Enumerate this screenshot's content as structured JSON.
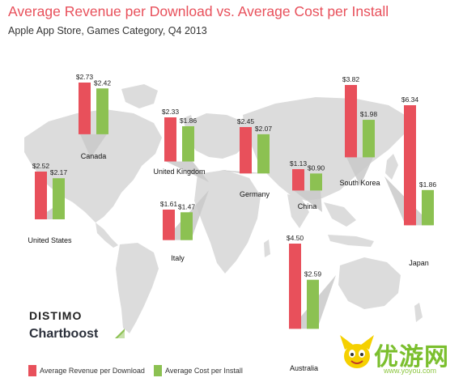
{
  "header": {
    "title": "Average Revenue per Download vs. Average Cost per Install",
    "subtitle": "Apple App Store, Games Category, Q4 2013"
  },
  "colors": {
    "revenue": "#e8505b",
    "cost": "#8cc152",
    "map": "#dcdcdc",
    "leader": "#c9c9c9"
  },
  "chart_data": {
    "type": "bar",
    "title": "Average Revenue per Download vs. Average Cost per Install",
    "subtitle": "Apple App Store, Games Category, Q4 2013",
    "value_format": "$",
    "categories": [
      "Canada",
      "United States",
      "United Kingdom",
      "Italy",
      "Germany",
      "China",
      "South Korea",
      "Japan",
      "Australia"
    ],
    "series": [
      {
        "name": "Average Revenue per Download",
        "values": [
          2.73,
          2.52,
          2.33,
          1.61,
          2.45,
          1.13,
          3.82,
          6.34,
          4.5
        ]
      },
      {
        "name": "Average Cost per Install",
        "values": [
          2.42,
          2.17,
          1.86,
          1.47,
          2.07,
          0.9,
          1.98,
          1.86,
          2.59
        ]
      }
    ],
    "legend": "bottom-left"
  },
  "legend": {
    "revenue_label": "Average Revenue per Download",
    "cost_label": "Average Cost per Install"
  },
  "logos": {
    "distimo": "DISTIMO",
    "chartboost": "Chartboost"
  },
  "watermark": {
    "text": "优游网",
    "url": "www.yoyou.com"
  }
}
